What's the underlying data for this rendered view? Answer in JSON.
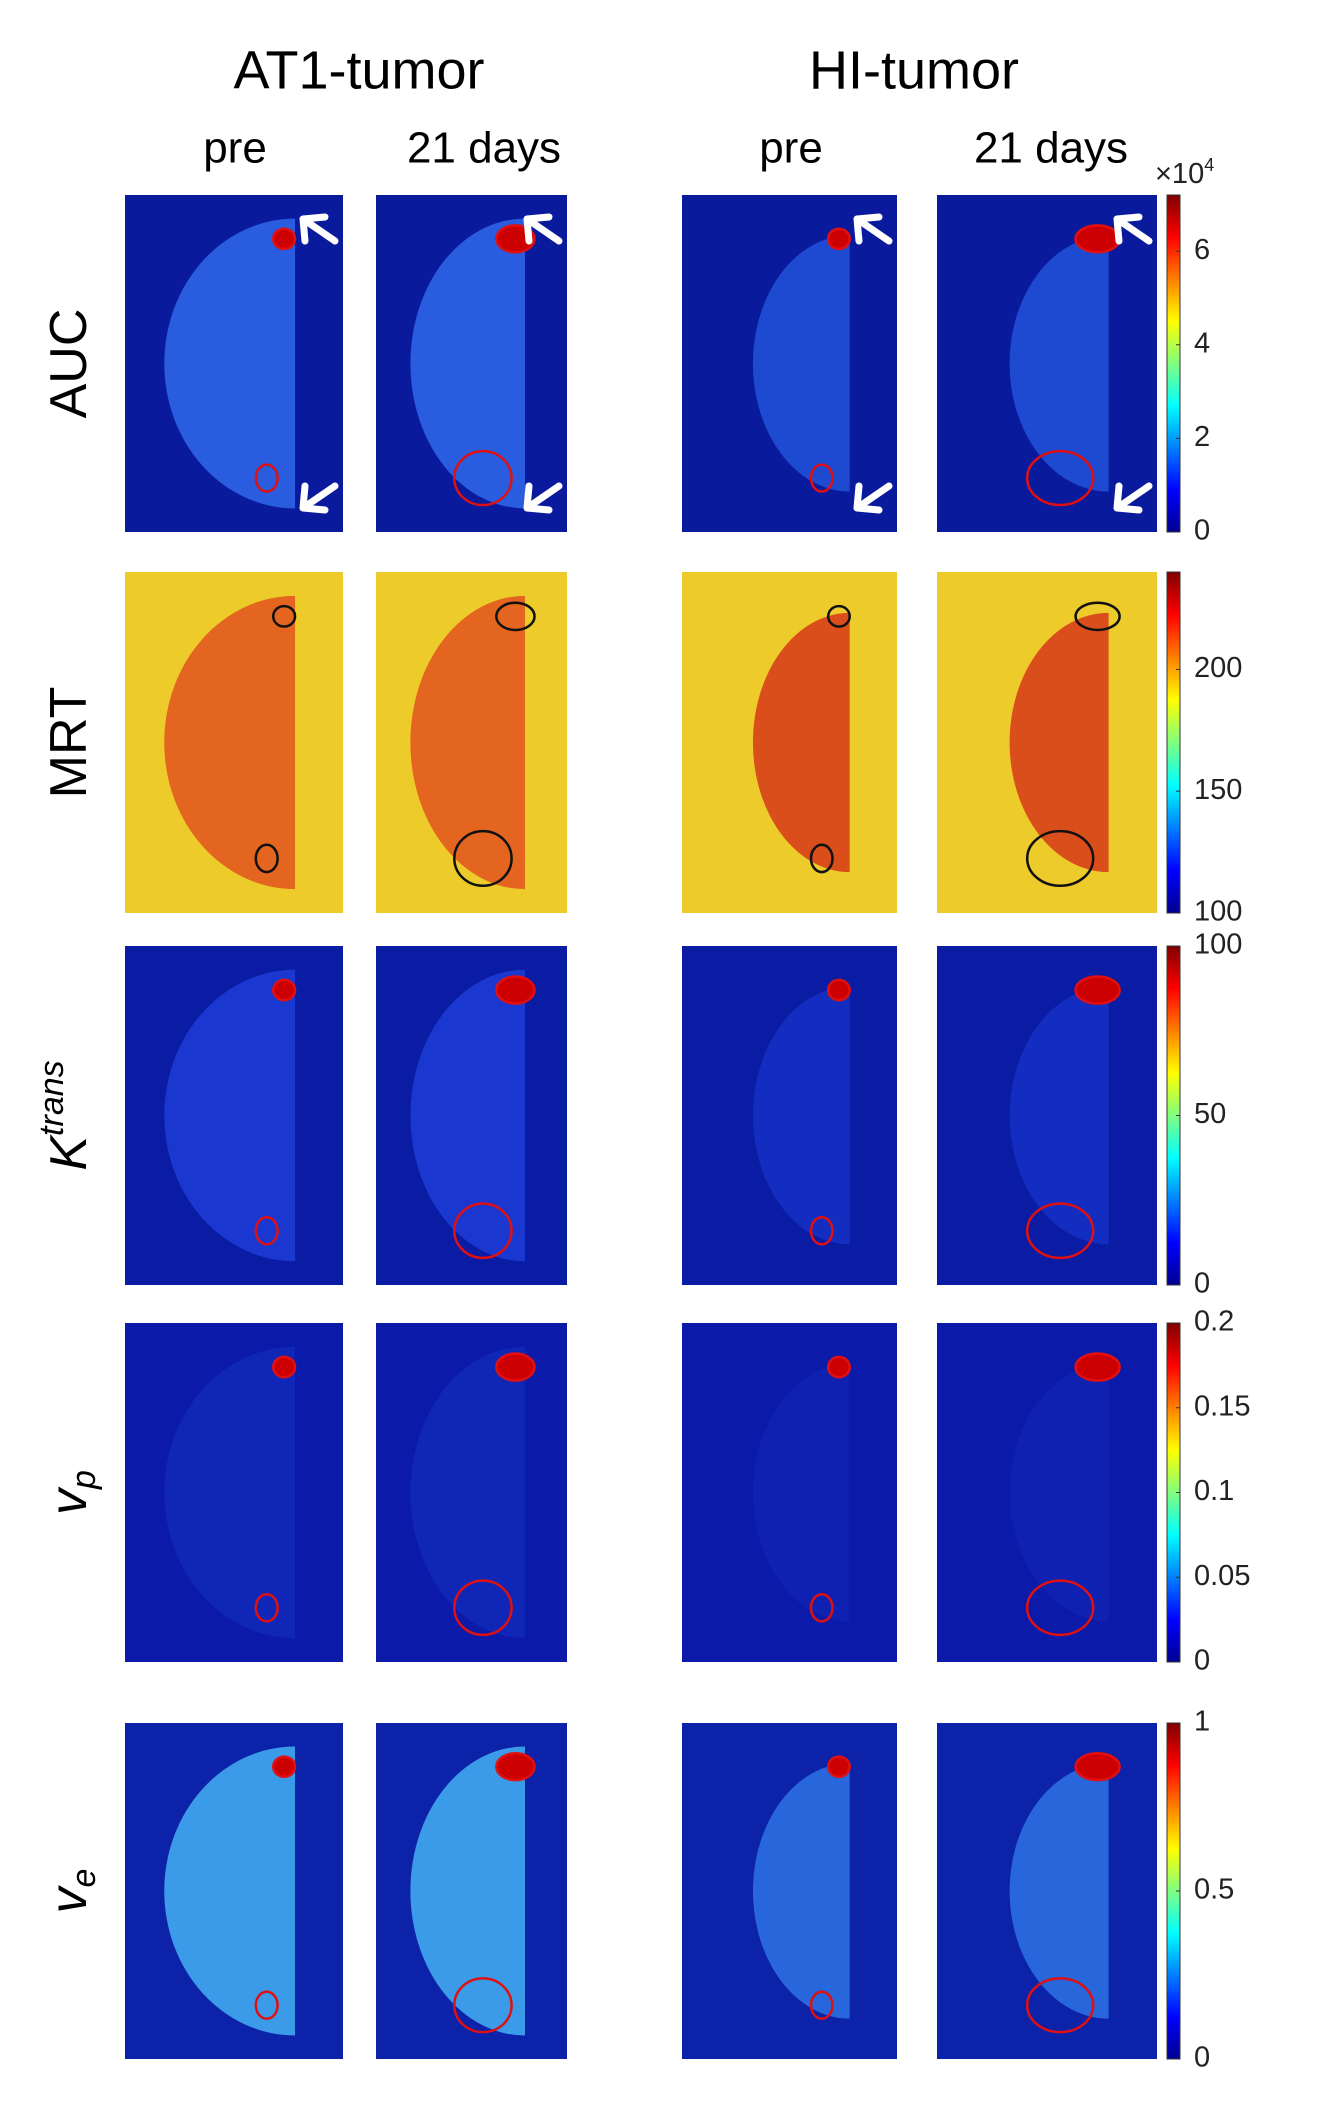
{
  "groups": [
    {
      "title": "AT1-tumor",
      "columns": [
        "pre",
        "21 days"
      ]
    },
    {
      "title": "HI-tumor",
      "columns": [
        "pre",
        "21 days"
      ]
    }
  ],
  "rows": [
    {
      "label": {
        "main": "AUC"
      },
      "colorbar": {
        "lim": [
          0,
          7.2
        ],
        "ticks": [
          0,
          2,
          4,
          6
        ],
        "multiplier": {
          "base": "×10",
          "exponent": "4"
        }
      }
    },
    {
      "label": {
        "main": "MRT"
      },
      "colorbar": {
        "lim": [
          100,
          240
        ],
        "ticks": [
          100,
          150,
          200
        ]
      }
    },
    {
      "label": {
        "main": "K",
        "sup": "trans"
      },
      "colorbar": {
        "lim": [
          0,
          100
        ],
        "ticks": [
          0,
          50,
          100
        ]
      }
    },
    {
      "label": {
        "main": "v",
        "sub": "p"
      },
      "colorbar": {
        "lim": [
          0,
          0.2
        ],
        "ticks": [
          0,
          0.05,
          0.1,
          0.15,
          0.2
        ]
      }
    },
    {
      "label": {
        "main": "v",
        "sub": "e"
      },
      "colorbar": {
        "lim": [
          0,
          1
        ],
        "ticks": [
          0,
          0.5,
          1
        ]
      }
    }
  ]
}
